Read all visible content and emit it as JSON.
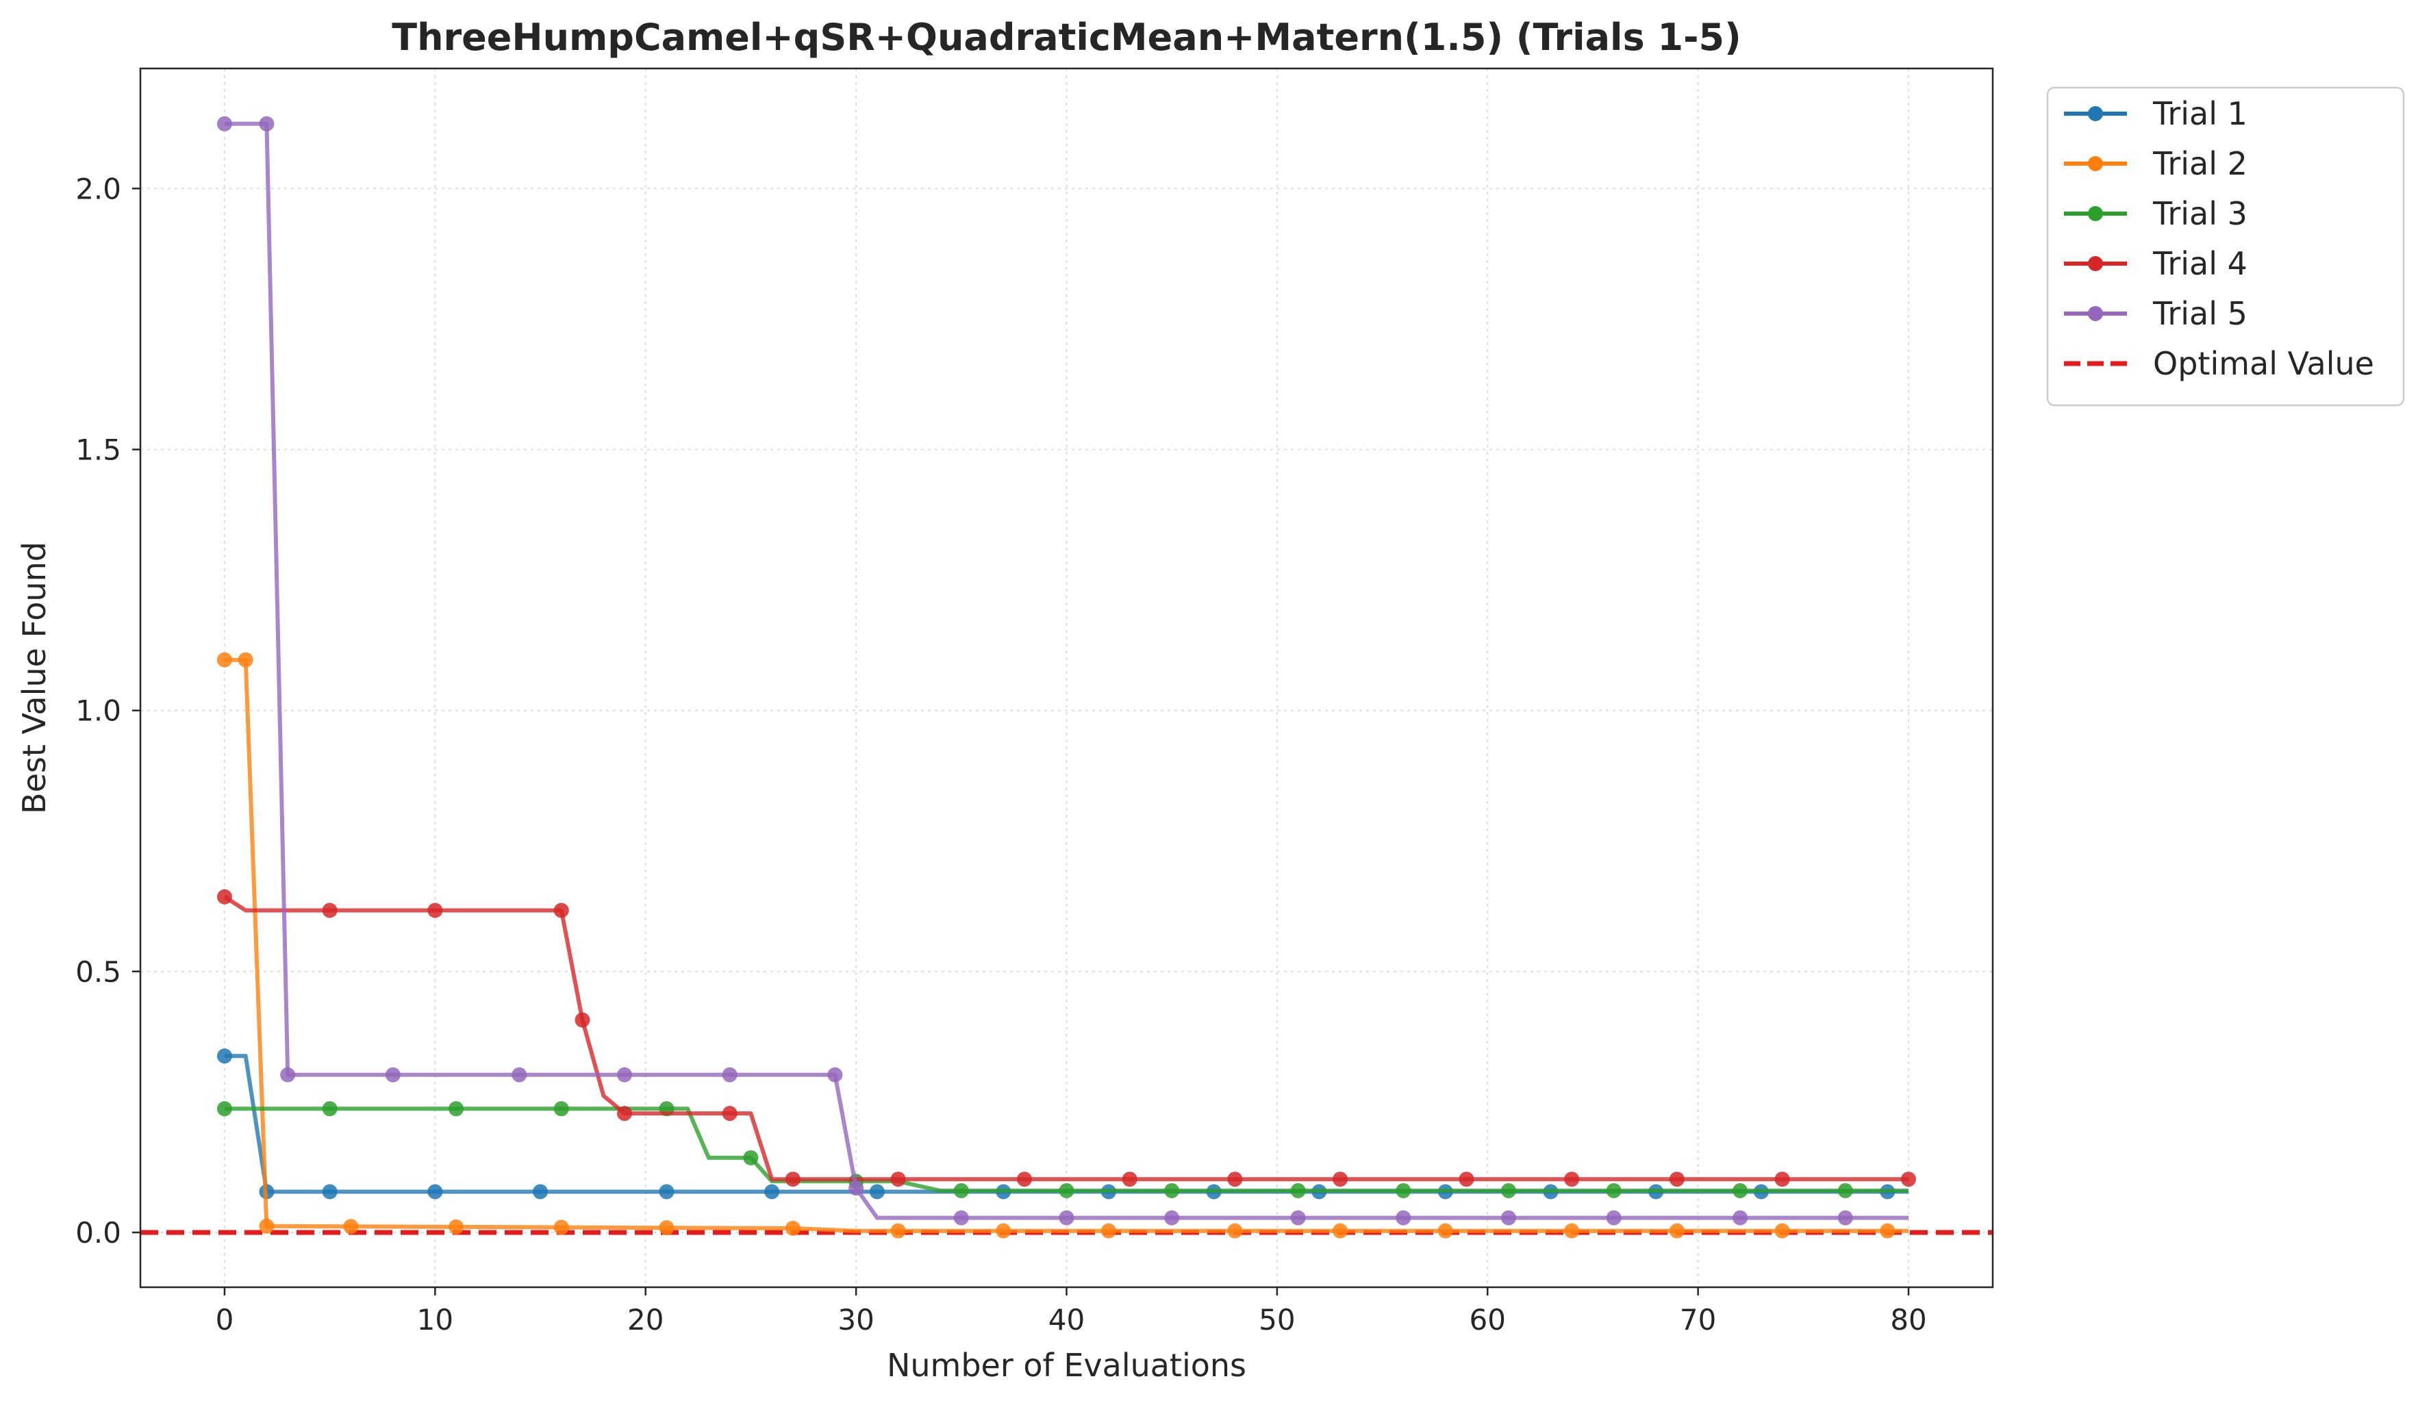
{
  "chart_data": {
    "type": "line",
    "title": "ThreeHumpCamel+qSR+QuadraticMean+Matern(1.5) (Trials 1-5)",
    "xlabel": "Number of Evaluations",
    "ylabel": "Best Value Found",
    "xlim": [
      -4,
      84
    ],
    "ylim": [
      -0.105,
      2.23
    ],
    "xticks": [
      0,
      10,
      20,
      30,
      40,
      50,
      60,
      70,
      80
    ],
    "yticks": [
      0.0,
      0.5,
      1.0,
      1.5,
      2.0
    ],
    "xtick_labels": [
      "0",
      "10",
      "20",
      "30",
      "40",
      "50",
      "60",
      "70",
      "80"
    ],
    "ytick_labels": [
      "0.0",
      "0.5",
      "1.0",
      "1.5",
      "2.0"
    ],
    "grid": true,
    "legend_position": "outside-top-right",
    "series": [
      {
        "name": "Trial 1",
        "color": "#1f77b4",
        "steps": [
          [
            0,
            0.338
          ],
          [
            1,
            0.338
          ],
          [
            2,
            0.078
          ],
          [
            80,
            0.078
          ]
        ],
        "marker_x": [
          0,
          2,
          5,
          10,
          15,
          21,
          26,
          31,
          37,
          42,
          47,
          52,
          58,
          63,
          68,
          73,
          79
        ]
      },
      {
        "name": "Trial 2",
        "color": "#ff7f0e",
        "steps": [
          [
            0,
            1.097
          ],
          [
            1,
            1.097
          ],
          [
            2,
            0.012
          ],
          [
            27,
            0.008
          ],
          [
            30,
            0.003
          ],
          [
            80,
            0.003
          ]
        ],
        "marker_x": [
          0,
          1,
          2,
          6,
          11,
          16,
          21,
          27,
          32,
          37,
          42,
          48,
          53,
          58,
          64,
          69,
          74,
          79
        ]
      },
      {
        "name": "Trial 3",
        "color": "#2ca02c",
        "steps": [
          [
            0,
            0.237
          ],
          [
            22,
            0.237
          ],
          [
            23,
            0.143
          ],
          [
            25,
            0.143
          ],
          [
            26,
            0.098
          ],
          [
            32,
            0.098
          ],
          [
            34,
            0.08
          ],
          [
            80,
            0.08
          ]
        ],
        "marker_x": [
          0,
          5,
          11,
          16,
          21,
          25,
          30,
          35,
          40,
          45,
          51,
          56,
          61,
          66,
          72,
          77
        ]
      },
      {
        "name": "Trial 4",
        "color": "#d62728",
        "steps": [
          [
            0,
            0.643
          ],
          [
            1,
            0.617
          ],
          [
            16,
            0.617
          ],
          [
            17,
            0.407
          ],
          [
            18,
            0.262
          ],
          [
            19,
            0.228
          ],
          [
            25,
            0.228
          ],
          [
            26,
            0.102
          ],
          [
            80,
            0.102
          ]
        ],
        "marker_x": [
          0,
          5,
          10,
          16,
          17,
          19,
          24,
          27,
          32,
          38,
          43,
          48,
          53,
          59,
          64,
          69,
          74,
          80
        ]
      },
      {
        "name": "Trial 5",
        "color": "#9467bd",
        "steps": [
          [
            0,
            2.124
          ],
          [
            2,
            2.124
          ],
          [
            3,
            0.302
          ],
          [
            29,
            0.302
          ],
          [
            30,
            0.085
          ],
          [
            31,
            0.028
          ],
          [
            80,
            0.028
          ]
        ],
        "marker_x": [
          0,
          2,
          3,
          8,
          14,
          19,
          24,
          29,
          30,
          35,
          40,
          45,
          51,
          56,
          61,
          66,
          72,
          77
        ]
      }
    ],
    "reference_line": {
      "name": "Optimal Value",
      "y": 0.0,
      "color": "#e41a1c",
      "style": "dashed"
    }
  }
}
